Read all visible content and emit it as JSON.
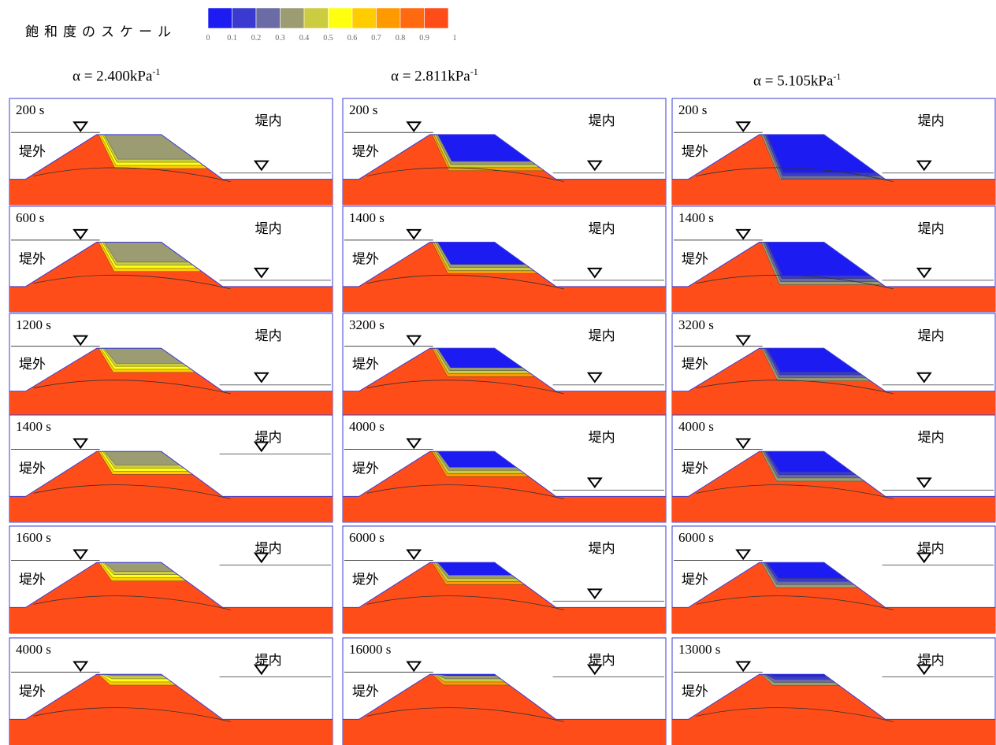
{
  "scale": {
    "title": "飽和度のスケール",
    "colors": [
      "#1c1cf2",
      "#3a3ad0",
      "#6b6ba6",
      "#9c9c72",
      "#cccc40",
      "#ffff10",
      "#ffcc00",
      "#ff9900",
      "#ff6a10",
      "#ff4d1a"
    ],
    "tick_labels": [
      "0",
      "0.1",
      "0.2",
      "0.3",
      "0.4",
      "0.5",
      "0.6",
      "0.7",
      "0.8",
      "0.9",
      "1"
    ]
  },
  "columns": [
    {
      "alpha_prefix": "α  = ",
      "alpha_value": "2.400kPa",
      "alpha_exp": "-1",
      "dry_color": "#9c9c72",
      "band_colors": [
        "#cccc40",
        "#ffff10",
        "#ffcc00"
      ],
      "panels": [
        {
          "time": "200 s",
          "dry_fraction": 0.55,
          "right_wl": "low"
        },
        {
          "time": "600 s",
          "dry_fraction": 0.45,
          "right_wl": "low"
        },
        {
          "time": "1200 s",
          "dry_fraction": 0.35,
          "right_wl": "low"
        },
        {
          "time": "1400 s",
          "dry_fraction": 0.3,
          "right_wl": "high"
        },
        {
          "time": "1600 s",
          "dry_fraction": 0.2,
          "right_wl": "high"
        },
        {
          "time": "4000 s",
          "dry_fraction": 0.03,
          "right_wl": "high"
        }
      ]
    },
    {
      "alpha_prefix": "α = ",
      "alpha_value": "2.811kPa",
      "alpha_exp": "-1",
      "dry_color": "#1c1cf2",
      "band_colors": [
        "#9c9c72",
        "#cccc40",
        "#ff9900"
      ],
      "panels": [
        {
          "time": "200 s",
          "dry_fraction": 0.6,
          "right_wl": "low"
        },
        {
          "time": "1400 s",
          "dry_fraction": 0.5,
          "right_wl": "low"
        },
        {
          "time": "3200 s",
          "dry_fraction": 0.45,
          "right_wl": "low"
        },
        {
          "time": "4000 s",
          "dry_fraction": 0.35,
          "right_wl": "low"
        },
        {
          "time": "6000 s",
          "dry_fraction": 0.28,
          "right_wl": "low"
        },
        {
          "time": "16000 s",
          "dry_fraction": 0.03,
          "right_wl": "high"
        }
      ]
    },
    {
      "alpha_prefix": "α = ",
      "alpha_value": "5.105kPa",
      "alpha_exp": "-1",
      "dry_color": "#1c1cf2",
      "band_colors": [
        "#3a3ad0",
        "#6b6ba6",
        "#9c9c72"
      ],
      "panels": [
        {
          "time": "200 s",
          "dry_fraction": 0.85,
          "right_wl": "low"
        },
        {
          "time": "1400 s",
          "dry_fraction": 0.75,
          "right_wl": "low"
        },
        {
          "time": "3200 s",
          "dry_fraction": 0.55,
          "right_wl": "low"
        },
        {
          "time": "4000 s",
          "dry_fraction": 0.45,
          "right_wl": "low"
        },
        {
          "time": "6000 s",
          "dry_fraction": 0.35,
          "right_wl": "high"
        },
        {
          "time": "13000 s",
          "dry_fraction": 0.04,
          "right_wl": "high"
        }
      ]
    }
  ],
  "labels": {
    "outside": "堤外",
    "inside": "堤内"
  },
  "colors": {
    "saturated": "#ff4d1a",
    "outline": "#3b3bd6",
    "frame": "#3b3bd6"
  }
}
